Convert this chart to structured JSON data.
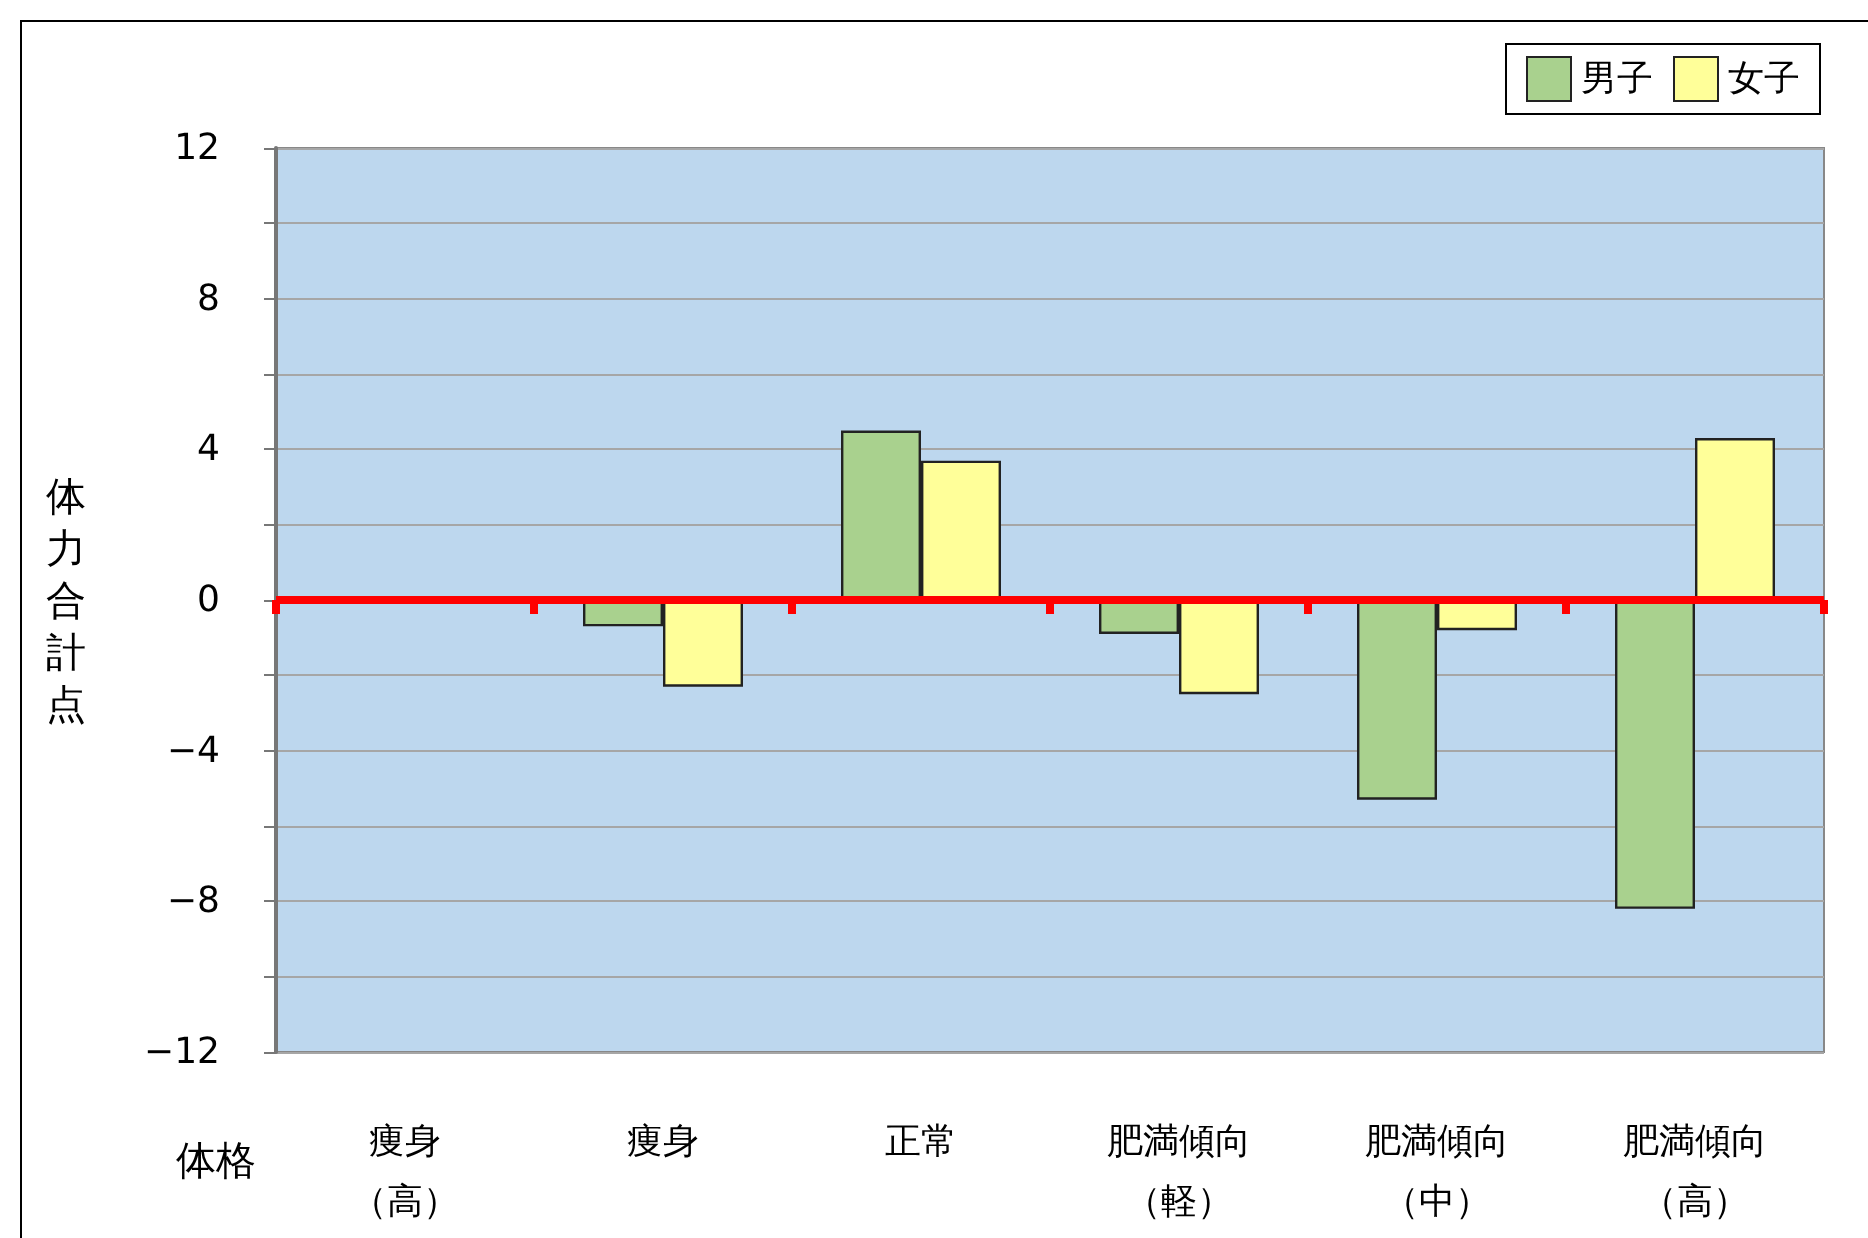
{
  "chart_data": {
    "type": "bar",
    "xlabel": "体格",
    "ylabel": "体力合計点",
    "categories": [
      "痩身（高）",
      "痩身",
      "正常",
      "肥満傾向（軽）",
      "肥満傾向（中）",
      "肥満傾向（高）"
    ],
    "ref_lines": [
      {
        "axis": "y",
        "value": 0,
        "color": "#ff0000"
      }
    ],
    "series": [
      {
        "name": "男子",
        "color": "#a9d18e",
        "values": [
          null,
          -0.7,
          4.5,
          -0.9,
          -5.3,
          -8.2
        ]
      },
      {
        "name": "女子",
        "color": "#ffff99",
        "values": [
          null,
          -2.3,
          3.7,
          -2.5,
          -0.8,
          4.3
        ]
      }
    ],
    "ylim": [
      -12,
      12
    ],
    "yticks": [
      {
        "value": -12,
        "label": "−12"
      },
      {
        "value": -10,
        "label": null
      },
      {
        "value": -8,
        "label": "−8"
      },
      {
        "value": -6,
        "label": null
      },
      {
        "value": -4,
        "label": "−4"
      },
      {
        "value": -2,
        "label": null
      },
      0,
      {
        "value": 2,
        "label": null
      },
      4,
      {
        "value": 6,
        "label": null
      },
      8,
      {
        "value": 10,
        "label": null
      },
      12
    ],
    "grid": "y",
    "legend": "top right"
  }
}
